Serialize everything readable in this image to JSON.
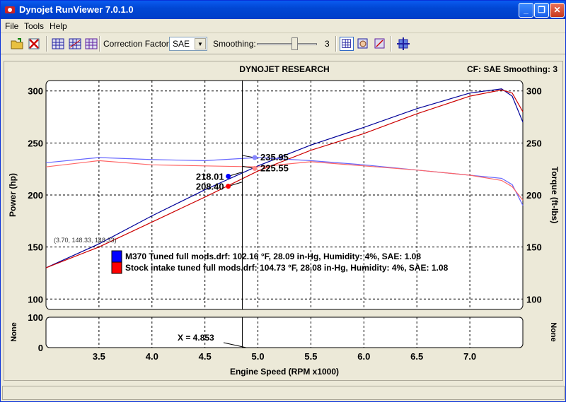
{
  "window": {
    "title": "Dynojet RunViewer 7.0.1.0",
    "min_label": "_",
    "max_label": "❐",
    "close_label": "✕"
  },
  "menu": [
    "File",
    "Tools",
    "Help"
  ],
  "toolbar": {
    "correction_label": "Correction Factor:",
    "correction_value": "SAE",
    "smoothing_label": "Smoothing:",
    "smoothing_value": "3",
    "smoothing_level": 3
  },
  "chart": {
    "header": "DYNOJET RESEARCH",
    "cf_info": "CF: SAE  Smoothing: 3",
    "cursor_readout": "X = 4.853",
    "corner_label": "(3.70, 148.33, 148.33)"
  },
  "chart_data": {
    "type": "line",
    "title": "DYNOJET RESEARCH",
    "xlabel": "Engine Speed (RPM x1000)",
    "ylabel": "Power (hp)",
    "y2label": "Torque (ft-lbs)",
    "lower_ylabel": "None",
    "lower_y2label": "None",
    "xlim": [
      3.0,
      7.5
    ],
    "ylim": [
      90,
      310
    ],
    "lower_ylim": [
      0,
      100
    ],
    "x_ticks": [
      "3.5",
      "4.0",
      "4.5",
      "5.0",
      "5.5",
      "6.0",
      "6.5",
      "7.0"
    ],
    "y_ticks": [
      "100",
      "150",
      "200",
      "250",
      "300"
    ],
    "lower_y_ticks": [
      "0",
      "100"
    ],
    "grid": true,
    "cursor_x": 4.853,
    "legend": [
      {
        "label": "M370 Tuned full mods.drf: 102.16 °F, 28.09 in-Hg, Humidity: 4%, SAE: 1.08",
        "color": "#0000ff"
      },
      {
        "label": "Stock intake tuned full mods.drf: 104.73 °F, 28.08 in-Hg, Humidity: 4%, SAE: 1.08",
        "color": "#ff0000"
      }
    ],
    "series": [
      {
        "name": "M370 Tuned full mods.drf",
        "quantity": "power",
        "color": "#000099",
        "x": [
          3.0,
          3.5,
          4.0,
          4.5,
          5.0,
          5.5,
          6.0,
          6.5,
          7.0,
          7.3,
          7.4,
          7.5
        ],
        "y": [
          130,
          153,
          180,
          205,
          228,
          248,
          265,
          283,
          298,
          302,
          295,
          270
        ]
      },
      {
        "name": "Stock intake tuned full mods.drf",
        "quantity": "power",
        "color": "#cc0000",
        "x": [
          3.0,
          3.5,
          4.0,
          4.5,
          5.0,
          5.5,
          6.0,
          6.5,
          7.0,
          7.3,
          7.4,
          7.5
        ],
        "y": [
          130,
          150,
          174,
          198,
          223,
          243,
          259,
          278,
          295,
          301,
          298,
          280
        ]
      },
      {
        "name": "M370 Tuned full mods.drf",
        "quantity": "torque",
        "color": "#6666ff",
        "x": [
          3.0,
          3.5,
          4.0,
          4.5,
          5.0,
          5.5,
          6.0,
          6.5,
          7.0,
          7.3,
          7.4,
          7.5
        ],
        "y": [
          231,
          236,
          234,
          233,
          236,
          233,
          229,
          224,
          219,
          216,
          210,
          190
        ]
      },
      {
        "name": "Stock intake tuned full mods.drf",
        "quantity": "torque",
        "color": "#ff6666",
        "x": [
          3.0,
          3.5,
          4.0,
          4.5,
          5.0,
          5.5,
          6.0,
          6.5,
          7.0,
          7.3,
          7.4,
          7.5
        ],
        "y": [
          227,
          233,
          229,
          228,
          227,
          232,
          228,
          224,
          219,
          214,
          208,
          195
        ]
      }
    ],
    "markers": [
      {
        "label": "235.95",
        "x": 4.97,
        "y": 235.95,
        "color": "#8888ff",
        "side": "right"
      },
      {
        "label": "225.55",
        "x": 4.97,
        "y": 225.55,
        "color": "#ff8888",
        "side": "right"
      },
      {
        "label": "218.01",
        "x": 4.72,
        "y": 218.01,
        "color": "#0000ff",
        "side": "left"
      },
      {
        "label": "208.40",
        "x": 4.72,
        "y": 208.4,
        "color": "#ff0000",
        "side": "left"
      }
    ]
  }
}
